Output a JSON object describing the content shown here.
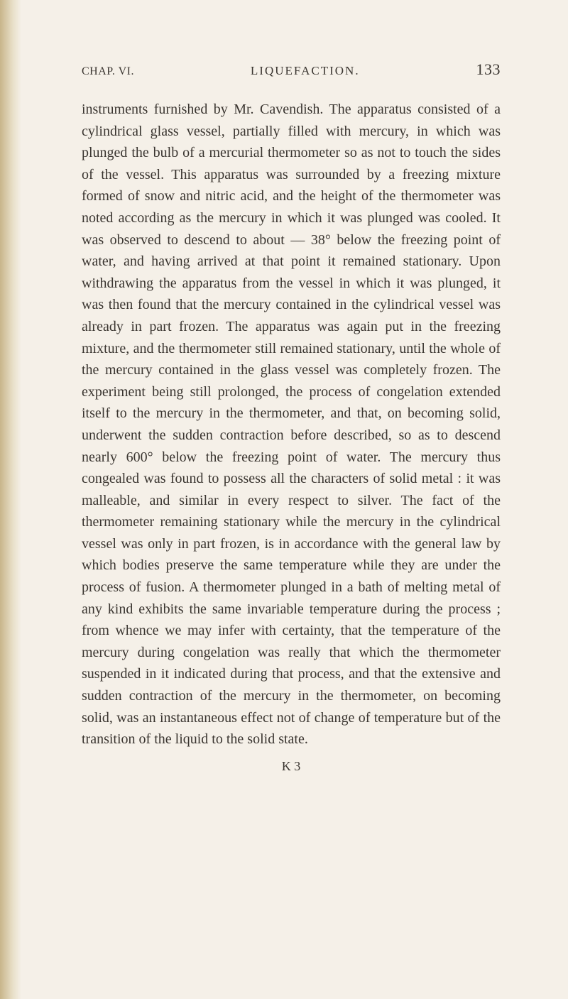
{
  "header": {
    "chapter": "CHAP. VI.",
    "title": "LIQUEFACTION.",
    "pageNumber": "133"
  },
  "body": {
    "text": "instruments furnished by Mr. Cavendish. The apparatus consisted of a cylindrical glass vessel, partially filled with mercury, in which was plunged the bulb of a mercurial thermometer so as not to touch the sides of the vessel. This apparatus was surrounded by a freezing mixture formed of snow and nitric acid, and the height of the thermometer was noted according as the mercury in which it was plunged was cooled. It was observed to descend to about — 38° below the freezing point of water, and having arrived at that point it remained stationary. Upon withdrawing the apparatus from the vessel in which it was plunged, it was then found that the mercury contained in the cylindrical vessel was already in part frozen. The apparatus was again put in the freezing mixture, and the thermometer still remained stationary, until the whole of the mercury contained in the glass vessel was completely frozen. The experiment being still prolonged, the process of congelation extended itself to the mercury in the thermometer, and that, on becoming solid, underwent the sudden contraction before described, so as to descend nearly 600° below the freezing point of water. The mercury thus congealed was found to possess all the characters of solid metal : it was malleable, and similar in every respect to silver. The fact of the thermometer remaining stationary while the mercury in the cylindrical vessel was only in part frozen, is in accordance with the general law by which bodies preserve the same temperature while they are under the process of fusion. A thermometer plunged in a bath of melting metal of any kind exhibits the same invariable temperature during the process ; from whence we may infer with certainty, that the temperature of the mercury during congelation was really that which the thermometer suspended in it indicated during that process, and that the extensive and sudden contraction of the mercury in the thermometer, on becoming solid, was an instantaneous effect not of change of temperature but of the transition of the liquid to the solid state."
  },
  "footer": {
    "signature": "K 3"
  },
  "colors": {
    "background": "#f5f0e8",
    "text": "#3a3530",
    "marginShadow": "#c8b58a"
  },
  "typography": {
    "bodyFontSize": 20,
    "headerFontSize": 16,
    "pageNumFontSize": 22,
    "lineHeight": 1.53
  }
}
